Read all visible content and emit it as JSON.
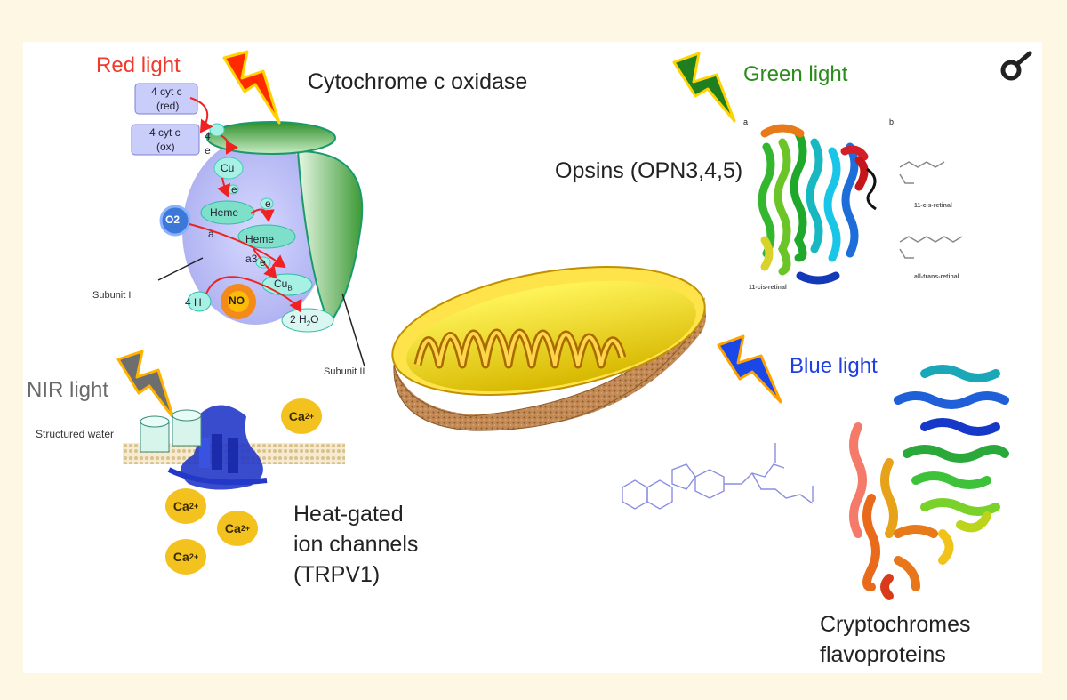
{
  "lights": {
    "red": "Red light",
    "green": "Green light",
    "blue": "Blue light",
    "nir": "NIR light"
  },
  "targets": {
    "cco": "Cytochrome c oxidase",
    "opsins": "Opsins (OPN3,4,5)",
    "ion_line1": "Heat-gated",
    "ion_line2": "ion channels",
    "ion_line3": "(TRPV1)",
    "crypto_line1": "Cryptochromes",
    "crypto_line2": "flavoproteins"
  },
  "cco_diagram": {
    "cyt_red_1": "4 cyt c",
    "cyt_red_2": "(red)",
    "cyt_ox_1": "4 cyt c",
    "cyt_ox_2": "(ox)",
    "four": "4",
    "e": "e",
    "cu": "Cu",
    "heme_a": "Heme",
    "a": "a",
    "heme_a3": "Heme",
    "a3": "a3",
    "cub": "Cu",
    "cub_sub": "B",
    "o2": "O2",
    "no": "NO",
    "four_h": "4 H",
    "water_pre": "2 H",
    "water_sub": "2",
    "water_post": "O",
    "subunit1": "Subunit I",
    "subunit2": "Subunit II"
  },
  "ion_channel": {
    "structured_water": "Structured water",
    "ca": "Ca",
    "ca_charge": "2+"
  },
  "opsin_figure": {
    "panel_a": "a",
    "panel_b": "b",
    "cis_left": "11-cis-retinal",
    "cis_right": "11-cis-retinal",
    "trans": "all-trans-retinal"
  },
  "colors": {
    "red_light": "#f03a2b",
    "green_light": "#2a8c1a",
    "blue_light": "#1f3fe0",
    "nir_light": "#6a6a6a"
  },
  "icons": {
    "corner": "magnifier-icon"
  }
}
